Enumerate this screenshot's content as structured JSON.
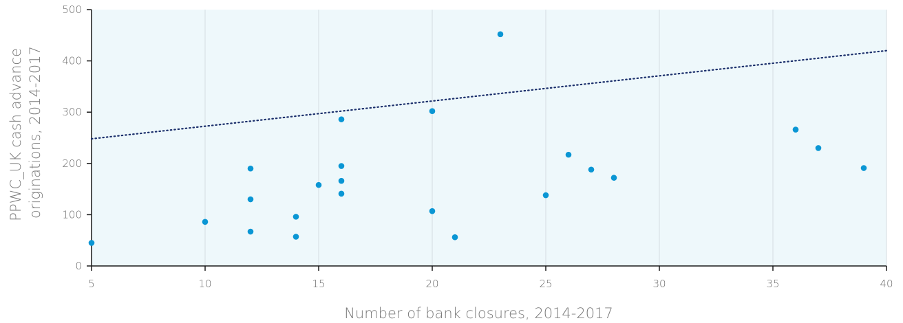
{
  "chart_data": {
    "type": "scatter",
    "xlabel": "Number of bank closures, 2014-2017",
    "ylabel_lines": [
      "PPWC_UK cash advance",
      "originations, 2014-2017"
    ],
    "xlim": [
      5,
      40
    ],
    "ylim": [
      0,
      500
    ],
    "x_ticks": [
      5,
      10,
      15,
      20,
      25,
      30,
      35,
      40
    ],
    "y_ticks": [
      0,
      100,
      200,
      300,
      400,
      500
    ],
    "grid": "vertical",
    "series": [
      {
        "points": [
          {
            "x": 5,
            "y": 45
          },
          {
            "x": 10,
            "y": 86
          },
          {
            "x": 12,
            "y": 190
          },
          {
            "x": 12,
            "y": 130
          },
          {
            "x": 12,
            "y": 67
          },
          {
            "x": 14,
            "y": 96
          },
          {
            "x": 14,
            "y": 57
          },
          {
            "x": 15,
            "y": 158
          },
          {
            "x": 16,
            "y": 286
          },
          {
            "x": 16,
            "y": 195
          },
          {
            "x": 16,
            "y": 166
          },
          {
            "x": 16,
            "y": 141
          },
          {
            "x": 20,
            "y": 302
          },
          {
            "x": 20,
            "y": 107
          },
          {
            "x": 21,
            "y": 56
          },
          {
            "x": 23,
            "y": 452
          },
          {
            "x": 25,
            "y": 138
          },
          {
            "x": 26,
            "y": 217
          },
          {
            "x": 27,
            "y": 188
          },
          {
            "x": 28,
            "y": 172
          },
          {
            "x": 36,
            "y": 266
          },
          {
            "x": 37,
            "y": 230
          },
          {
            "x": 39,
            "y": 191
          }
        ]
      }
    ],
    "trendline": {
      "x": [
        5,
        40
      ],
      "y": [
        248,
        420
      ]
    },
    "colors": {
      "plot_background": "#eef8fb",
      "point": "#0a96d4",
      "trendline": "#1b2f6b",
      "axis": "#1a1a1a",
      "gridline": "#d4dde0"
    }
  }
}
